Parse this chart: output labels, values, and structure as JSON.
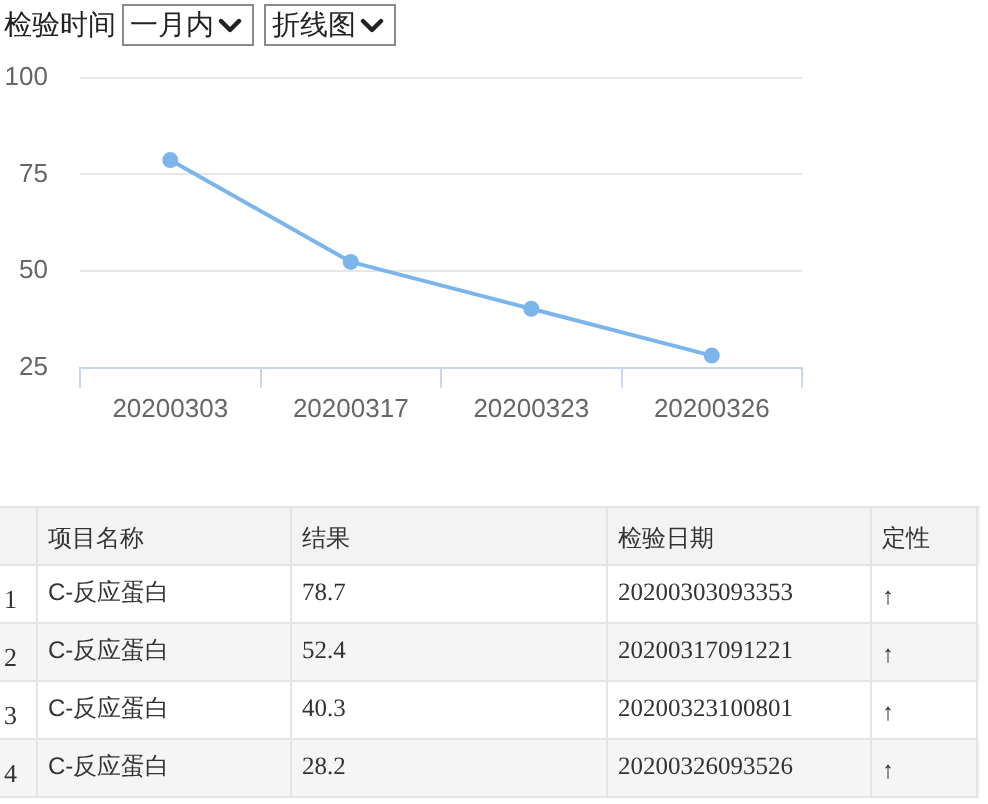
{
  "chart_data": {
    "type": "line",
    "categories": [
      "20200303",
      "20200317",
      "20200323",
      "20200326"
    ],
    "series": [
      {
        "color": "#7cb5ec",
        "values": [
          78.7,
          52.4,
          40.3,
          28.2
        ]
      }
    ],
    "ylim": [
      25,
      100
    ],
    "yticks": [
      25,
      50,
      75,
      100
    ],
    "grid": "y",
    "marker": "circle",
    "annotations": [
      "检验时间",
      "一月内",
      "折线图",
      "项目名称",
      "结果",
      "检验日期",
      "定性",
      "1",
      "C-反应蛋白",
      "78.7",
      "20200303093353",
      "↑",
      "2",
      "C-反应蛋白",
      "52.4",
      "20200317091221",
      "↑",
      "3",
      "C-反应蛋白",
      "40.3",
      "20200323100801",
      "↑",
      "4",
      "C-反应蛋白",
      "28.2",
      "20200326093526",
      "↑"
    ]
  }
}
